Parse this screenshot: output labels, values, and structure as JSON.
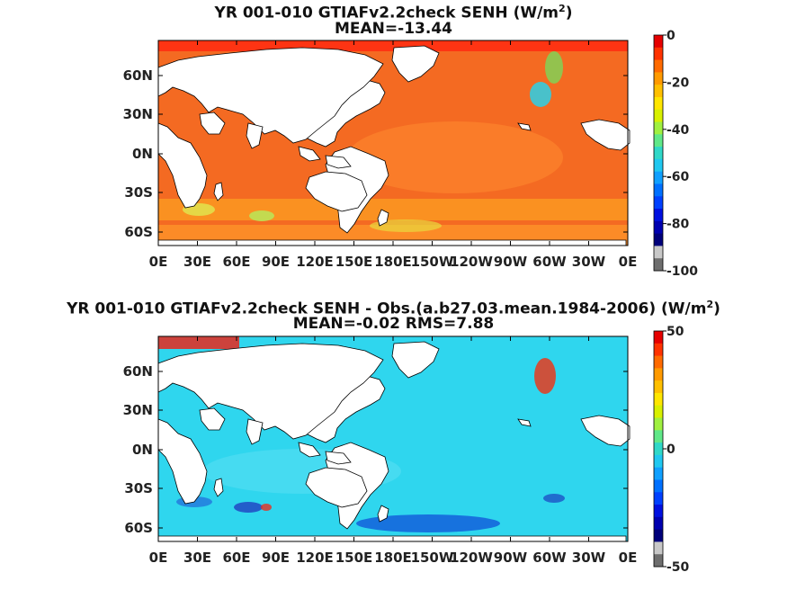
{
  "panels": [
    {
      "id": "top",
      "title_prefix": "YR 001-010 GTIAFv2.2check  SENH (W/m",
      "title_sup": "2",
      "title_suffix": ")",
      "subtitle": "MEAN=-13.44",
      "colorbar": {
        "labels": [
          "0",
          "-20",
          "-40",
          "-60",
          "-80",
          "-100"
        ]
      }
    },
    {
      "id": "bottom",
      "title_prefix": "YR 001-010 GTIAFv2.2check SENH - Obs.(a.b27.03.mean.1984-2006) (W/m",
      "title_sup": "2",
      "title_suffix": ")",
      "subtitle": "MEAN=-0.02 RMS=7.88",
      "colorbar": {
        "labels": [
          "50",
          "0",
          "-50"
        ]
      }
    }
  ],
  "axes": {
    "lat_labels": [
      "60N",
      "30N",
      "0N",
      "30S",
      "60S"
    ],
    "lon_labels": [
      "0E",
      "30E",
      "60E",
      "90E",
      "120E",
      "150E",
      "180E",
      "150W",
      "120W",
      "90W",
      "60W",
      "30W",
      "0E"
    ]
  },
  "colors": {
    "top_ocean": "#f46a22",
    "bottom_ocean": "#2fd6ee",
    "land": "#ffffff",
    "coast": "#000000"
  }
}
